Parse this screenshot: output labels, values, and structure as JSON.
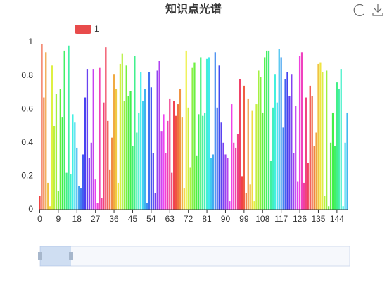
{
  "chart_data": {
    "type": "bar",
    "title": "知识点光谱",
    "series": [
      {
        "name": "1",
        "color": "#e84b4b",
        "values": [
          0.08,
          0.99,
          0.67,
          0.94,
          0.16,
          0.02,
          0.86,
          0.5,
          0.69,
          0.11,
          0.72,
          0.55,
          0.95,
          0.22,
          0.98,
          0.21,
          0.57,
          0.52,
          0.37,
          0.14,
          0.13,
          0.33,
          0.67,
          0.84,
          0.31,
          0.4,
          0.84,
          0.18,
          0.04,
          0.85,
          0.07,
          0.64,
          0.97,
          0.53,
          0.24,
          0.43,
          0.81,
          0.72,
          0.16,
          0.87,
          0.93,
          0.65,
          0.86,
          0.68,
          0.71,
          0.38,
          0.92,
          0.46,
          0.58,
          0.82,
          0.65,
          0.72,
          0.04,
          0.82,
          0.73,
          0.34,
          0.1,
          0.83,
          0.89,
          0.47,
          0.57,
          0.34,
          0.53,
          0.66,
          0.22,
          0.65,
          0.56,
          0.63,
          0.72,
          0.55,
          0.13,
          0.95,
          0.61,
          0.25,
          0.85,
          0.88,
          0.32,
          0.57,
          0.91,
          0.56,
          0.58,
          0.9,
          0.91,
          0.31,
          0.33,
          0.94,
          0.61,
          0.86,
          0.52,
          0.4,
          0.33,
          0.31,
          0.05,
          0.63,
          0.4,
          0.37,
          0.45,
          0.78,
          0.2,
          0.74,
          0.1,
          0.66,
          0.15,
          0.59,
          0.05,
          0.63,
          0.83,
          0.79,
          0.58,
          0.91,
          0.95,
          0.95,
          0.29,
          0.61,
          0.81,
          0.64,
          0.96,
          0.91,
          0.49,
          0.78,
          0.82,
          0.68,
          0.81,
          0.34,
          0.62,
          0.17,
          0.92,
          0.94,
          0.16,
          0.67,
          0.28,
          0.74,
          0.68,
          0.38,
          0.46,
          0.87,
          0.88,
          0.82,
          0.08,
          0.83,
          0.02,
          0.4,
          0.58,
          0.38,
          0.76,
          0.72,
          0.84,
          0.02,
          0.4,
          0.58
        ],
        "colors": [
          "hsl(0,85%,60%)",
          "hsl(11,85%,60%)",
          "hsl(22,85%,60%)",
          "hsl(33,85%,60%)",
          "hsl(44,85%,60%)",
          "hsl(55,85%,60%)",
          "hsl(66,85%,60%)",
          "hsl(77,85%,60%)",
          "hsl(88,85%,60%)",
          "hsl(99,85%,60%)",
          "hsl(110,85%,60%)",
          "hsl(121,85%,60%)",
          "hsl(132,85%,60%)",
          "hsl(143,85%,60%)",
          "hsl(154,85%,60%)",
          "hsl(165,85%,60%)",
          "hsl(176,85%,60%)",
          "hsl(187,85%,60%)",
          "hsl(198,85%,60%)",
          "hsl(209,85%,60%)",
          "hsl(220,85%,60%)",
          "hsl(231,85%,60%)",
          "hsl(242,85%,60%)",
          "hsl(253,85%,60%)",
          "hsl(264,85%,60%)",
          "hsl(275,85%,60%)",
          "hsl(286,85%,60%)",
          "hsl(297,85%,60%)",
          "hsl(308,85%,60%)",
          "hsl(319,85%,60%)",
          "hsl(330,85%,60%)",
          "hsl(341,85%,60%)",
          "hsl(352,85%,60%)",
          "hsl(3,85%,60%)",
          "hsl(14,85%,60%)",
          "hsl(25,85%,60%)",
          "hsl(36,85%,60%)",
          "hsl(47,85%,60%)",
          "hsl(58,85%,60%)",
          "hsl(69,85%,60%)",
          "hsl(80,85%,60%)",
          "hsl(91,85%,60%)",
          "hsl(102,85%,60%)",
          "hsl(113,85%,60%)",
          "hsl(124,85%,60%)",
          "hsl(135,85%,60%)",
          "hsl(146,85%,60%)",
          "hsl(157,85%,60%)",
          "hsl(168,85%,60%)",
          "hsl(179,85%,60%)",
          "hsl(190,85%,60%)",
          "hsl(201,85%,60%)",
          "hsl(212,85%,60%)",
          "hsl(223,85%,60%)",
          "hsl(234,85%,60%)",
          "hsl(245,85%,60%)",
          "hsl(256,85%,60%)",
          "hsl(267,85%,60%)",
          "hsl(278,85%,60%)",
          "hsl(289,85%,60%)",
          "hsl(300,85%,60%)",
          "hsl(311,85%,60%)",
          "hsl(322,85%,60%)",
          "hsl(333,85%,60%)",
          "hsl(344,85%,60%)",
          "hsl(355,85%,60%)",
          "hsl(6,85%,60%)",
          "hsl(17,85%,60%)",
          "hsl(28,85%,60%)",
          "hsl(39,85%,60%)",
          "hsl(50,85%,60%)",
          "hsl(61,85%,60%)",
          "hsl(72,85%,60%)",
          "hsl(83,85%,60%)",
          "hsl(94,85%,60%)",
          "hsl(105,85%,60%)",
          "hsl(116,85%,60%)",
          "hsl(127,85%,60%)",
          "hsl(138,85%,60%)",
          "hsl(149,85%,60%)",
          "hsl(160,85%,60%)",
          "hsl(171,85%,60%)",
          "hsl(182,85%,60%)",
          "hsl(193,85%,60%)",
          "hsl(204,85%,60%)",
          "hsl(215,85%,60%)",
          "hsl(226,85%,60%)",
          "hsl(237,85%,60%)",
          "hsl(248,85%,60%)",
          "hsl(259,85%,60%)",
          "hsl(270,85%,60%)",
          "hsl(281,85%,60%)",
          "hsl(292,85%,60%)",
          "hsl(303,85%,60%)",
          "hsl(314,85%,60%)",
          "hsl(325,85%,60%)",
          "hsl(336,85%,60%)",
          "hsl(347,85%,60%)",
          "hsl(358,85%,60%)",
          "hsl(9,85%,60%)",
          "hsl(20,85%,60%)",
          "hsl(31,85%,60%)",
          "hsl(42,85%,60%)",
          "hsl(53,85%,60%)",
          "hsl(64,85%,60%)",
          "hsl(75,85%,60%)",
          "hsl(86,85%,60%)",
          "hsl(97,85%,60%)",
          "hsl(108,85%,60%)",
          "hsl(119,85%,60%)",
          "hsl(130,85%,60%)",
          "hsl(141,85%,60%)",
          "hsl(152,85%,60%)",
          "hsl(163,85%,60%)",
          "hsl(174,85%,60%)",
          "hsl(185,85%,60%)",
          "hsl(196,85%,60%)",
          "hsl(207,85%,60%)",
          "hsl(218,85%,60%)",
          "hsl(229,85%,60%)",
          "hsl(240,85%,60%)",
          "hsl(251,85%,60%)",
          "hsl(262,85%,60%)",
          "hsl(273,85%,60%)",
          "hsl(284,85%,60%)",
          "hsl(295,85%,60%)",
          "hsl(306,85%,60%)",
          "hsl(317,85%,60%)",
          "hsl(328,85%,60%)",
          "hsl(339,85%,60%)",
          "hsl(350,85%,60%)",
          "hsl(1,85%,60%)",
          "hsl(12,85%,60%)",
          "hsl(23,85%,60%)",
          "hsl(34,85%,60%)",
          "hsl(45,85%,60%)",
          "hsl(56,85%,60%)",
          "hsl(67,85%,60%)",
          "hsl(78,85%,60%)",
          "hsl(89,85%,60%)",
          "hsl(100,85%,60%)",
          "hsl(111,85%,60%)",
          "hsl(122,85%,60%)",
          "hsl(133,85%,60%)",
          "hsl(144,85%,60%)",
          "hsl(155,85%,60%)",
          "hsl(166,85%,60%)",
          "hsl(177,85%,60%)",
          "hsl(188,85%,60%)",
          "hsl(199,85%,60%)"
        ]
      }
    ],
    "categories": [
      0,
      null,
      null,
      null,
      null,
      null,
      null,
      null,
      null,
      9,
      null,
      null,
      null,
      null,
      null,
      null,
      null,
      null,
      18,
      null,
      null,
      null,
      null,
      null,
      null,
      null,
      null,
      27,
      null,
      null,
      null,
      null,
      null,
      null,
      null,
      null,
      36,
      null,
      null,
      null,
      null,
      null,
      null,
      null,
      null,
      45,
      null,
      null,
      null,
      null,
      null,
      null,
      null,
      null,
      54,
      null,
      null,
      null,
      null,
      null,
      null,
      null,
      null,
      63,
      null,
      null,
      null,
      null,
      null,
      null,
      null,
      null,
      72,
      null,
      null,
      null,
      null,
      null,
      null,
      null,
      null,
      81,
      null,
      null,
      null,
      null,
      null,
      null,
      null,
      null,
      90,
      null,
      null,
      null,
      null,
      null,
      null,
      null,
      null,
      99,
      null,
      null,
      null,
      null,
      null,
      null,
      null,
      null,
      108,
      null,
      null,
      null,
      null,
      null,
      null,
      null,
      null,
      117,
      null,
      null,
      null,
      null,
      null,
      null,
      null,
      null,
      126,
      null,
      null,
      null,
      null,
      null,
      null,
      null,
      null,
      135,
      null,
      null,
      null,
      null,
      null,
      null,
      null,
      null,
      144,
      null,
      null,
      null,
      null,
      null
    ],
    "ylim": [
      0,
      1
    ],
    "yticks": [
      0,
      0.2,
      0.4,
      0.6,
      0.8,
      1
    ],
    "grid": false
  }
}
